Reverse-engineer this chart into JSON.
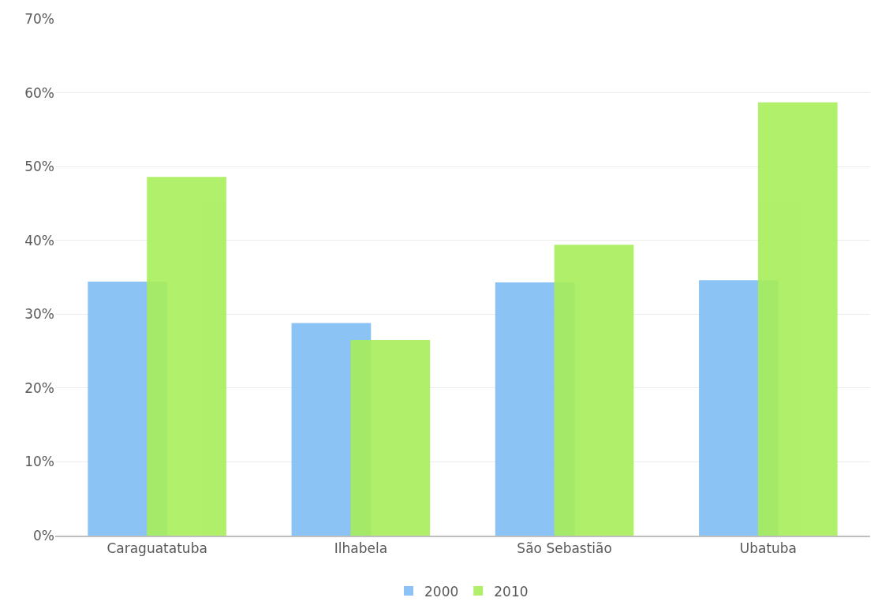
{
  "chart_data": {
    "type": "bar",
    "categories": [
      "Caraguatatuba",
      "Ilhabela",
      "São Sebastião",
      "Ubatuba"
    ],
    "series": [
      {
        "name": "2000",
        "color": "#80bcf4",
        "values": [
          34.4,
          28.8,
          34.3,
          34.6
        ]
      },
      {
        "name": "2010",
        "color": "#a8ee5a",
        "values": [
          48.6,
          26.5,
          39.4,
          58.7
        ]
      }
    ],
    "ylim": [
      0,
      70
    ],
    "yticks": [
      {
        "value": 0,
        "label": "0%"
      },
      {
        "value": 10,
        "label": "10%"
      },
      {
        "value": 20,
        "label": "20%"
      },
      {
        "value": 30,
        "label": "30%"
      },
      {
        "value": 40,
        "label": "40%"
      },
      {
        "value": 50,
        "label": "50%"
      },
      {
        "value": 60,
        "label": "60%"
      },
      {
        "value": 70,
        "label": "70%"
      }
    ],
    "grid": "y",
    "legend": "bottom"
  }
}
